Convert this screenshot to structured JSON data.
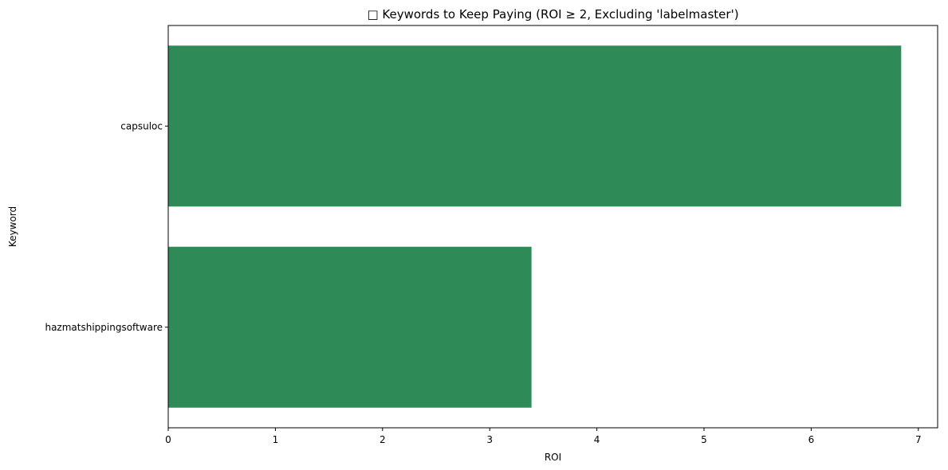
{
  "chart_data": {
    "type": "bar",
    "orientation": "horizontal",
    "title": "□ Keywords to Keep Paying (ROI ≥ 2, Excluding 'labelmaster')",
    "xlabel": "ROI",
    "ylabel": "Keyword",
    "categories": [
      "capsuloc",
      "hazmatshippingsoftware"
    ],
    "values": [
      6.84,
      3.39
    ],
    "xlim": [
      0,
      7.18
    ],
    "xticks": [
      "0",
      "1",
      "2",
      "3",
      "4",
      "5",
      "6",
      "7"
    ],
    "bar_color": "#2e8b57",
    "grid": false
  }
}
